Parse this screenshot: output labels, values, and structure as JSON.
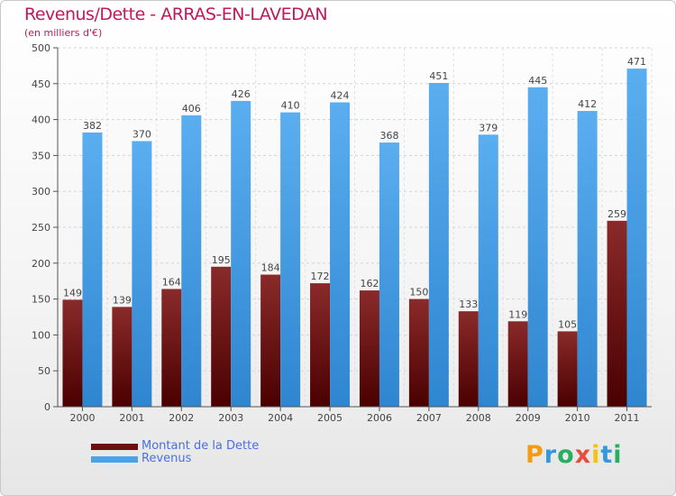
{
  "header": {
    "title": "Revenus/Dette - ARRAS-EN-LAVEDAN",
    "subtitle": "(en milliers d'€)"
  },
  "legend": {
    "items": [
      {
        "label": "Montant de la Dette",
        "color": "#6b0f0f"
      },
      {
        "label": "Revenus",
        "color": "#4aa3e8"
      }
    ]
  },
  "logo": {
    "text": "Proxiti",
    "letters": [
      {
        "ch": "P",
        "color": "#f39c12"
      },
      {
        "ch": "r",
        "color": "#3498db"
      },
      {
        "ch": "o",
        "color": "#27ae60"
      },
      {
        "ch": "x",
        "color": "#e74c3c"
      },
      {
        "ch": "i",
        "color": "#f1c40f"
      },
      {
        "ch": "t",
        "color": "#3498db"
      },
      {
        "ch": "i",
        "color": "#27ae60"
      }
    ]
  },
  "chart_data": {
    "type": "bar",
    "title": "Revenus/Dette - ARRAS-EN-LAVEDAN",
    "subtitle": "(en milliers d'€)",
    "categories": [
      "2000",
      "2001",
      "2002",
      "2003",
      "2004",
      "2005",
      "2006",
      "2007",
      "2008",
      "2009",
      "2010",
      "2011"
    ],
    "series": [
      {
        "name": "Montant de la Dette",
        "color": "#6b0f0f",
        "values": [
          149,
          139,
          164,
          195,
          184,
          172,
          162,
          150,
          133,
          119,
          105,
          259
        ]
      },
      {
        "name": "Revenus",
        "color": "#4aa3e8",
        "values": [
          382,
          370,
          406,
          426,
          410,
          424,
          368,
          451,
          379,
          445,
          412,
          471
        ]
      }
    ],
    "ylim": [
      0,
      500
    ],
    "yticks": [
      0,
      50,
      100,
      150,
      200,
      250,
      300,
      350,
      400,
      450,
      500
    ],
    "grid": true,
    "legend_position": "bottom-left"
  }
}
